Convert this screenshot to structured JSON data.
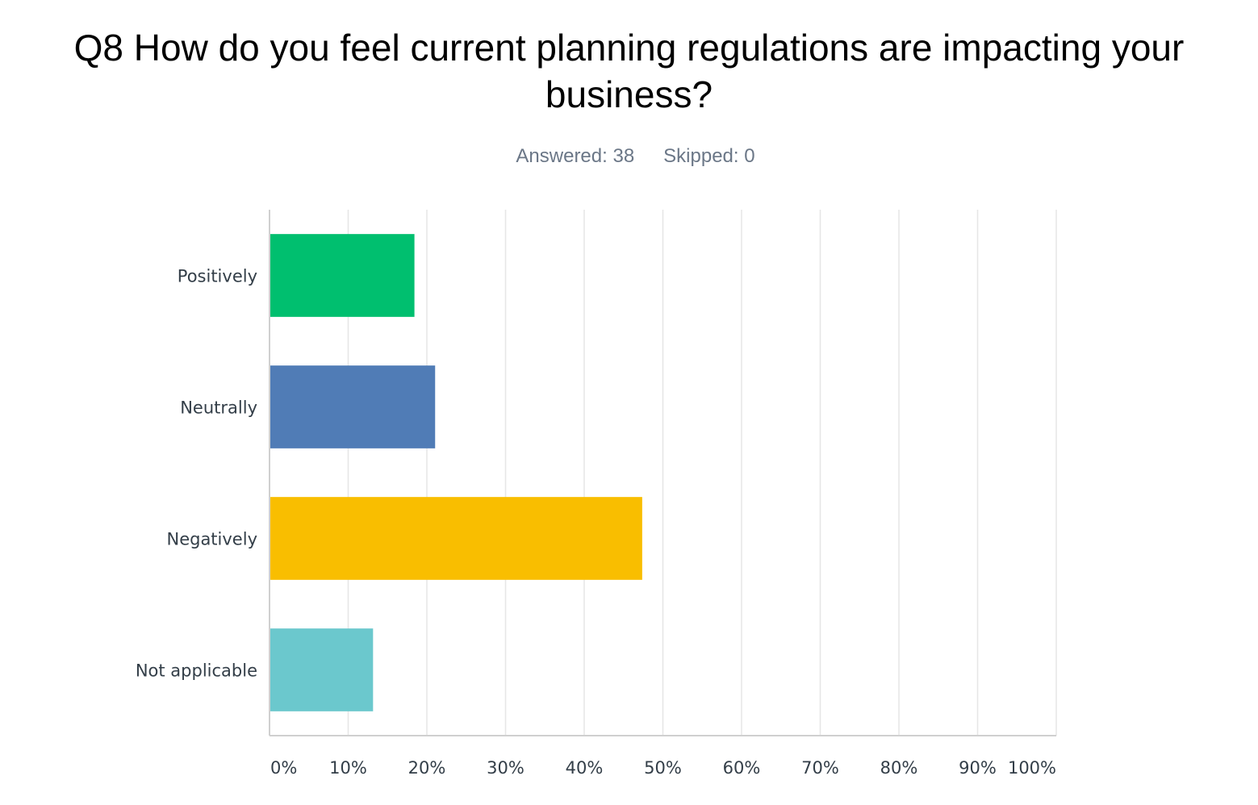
{
  "header": {
    "title": "Q8 How do you feel current planning regulations are impacting your business?",
    "answered": "Answered: 38",
    "skipped": "Skipped: 0"
  },
  "chart_data": {
    "type": "bar",
    "orientation": "horizontal",
    "categories": [
      "Positively",
      "Neutrally",
      "Negatively",
      "Not applicable"
    ],
    "values": [
      18.42,
      21.05,
      47.37,
      13.16
    ],
    "colors": [
      "#00bf6f",
      "#507cb6",
      "#f9be00",
      "#6bc8cd"
    ],
    "xlim": [
      0,
      100
    ],
    "x_ticks": [
      "0%",
      "10%",
      "20%",
      "30%",
      "40%",
      "50%",
      "60%",
      "70%",
      "80%",
      "90%",
      "100%"
    ],
    "grid": true,
    "xlabel": "",
    "ylabel": ""
  }
}
